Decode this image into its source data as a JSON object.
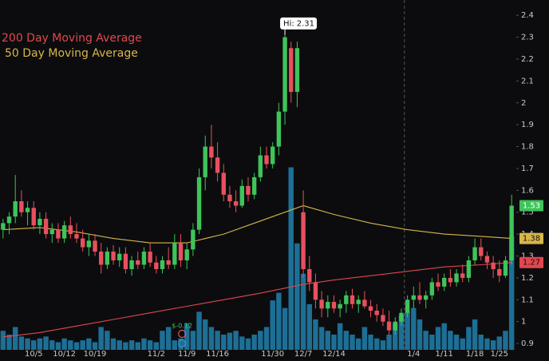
{
  "chart_data": {
    "type": "candlestick",
    "categories": [
      null,
      null,
      null,
      null,
      null,
      "10/5",
      null,
      null,
      null,
      null,
      "10/12",
      null,
      null,
      null,
      null,
      "10/19",
      null,
      null,
      null,
      null,
      null,
      null,
      null,
      null,
      null,
      "11/2",
      null,
      null,
      null,
      null,
      "11/9",
      null,
      null,
      null,
      null,
      "11/16",
      null,
      null,
      null,
      null,
      null,
      null,
      null,
      null,
      "11/30",
      null,
      null,
      null,
      null,
      "12/7",
      null,
      null,
      null,
      null,
      "12/14",
      null,
      null,
      null,
      null,
      null,
      null,
      null,
      null,
      null,
      null,
      null,
      null,
      "1/4",
      null,
      null,
      null,
      null,
      "1/11",
      null,
      null,
      null,
      null,
      "1/18",
      null,
      null,
      null,
      "1/25",
      null,
      null
    ],
    "open": [
      1.42,
      1.45,
      1.48,
      1.55,
      1.5,
      1.52,
      1.44,
      1.47,
      1.4,
      1.42,
      1.38,
      1.44,
      1.4,
      1.38,
      1.34,
      1.37,
      1.32,
      1.26,
      1.32,
      1.28,
      1.31,
      1.24,
      1.28,
      1.26,
      1.32,
      1.27,
      1.24,
      1.28,
      1.26,
      1.36,
      1.28,
      1.33,
      1.42,
      1.66,
      1.8,
      1.75,
      1.68,
      1.58,
      1.55,
      1.53,
      1.62,
      1.58,
      1.66,
      1.76,
      1.72,
      1.8,
      1.96,
      2.25,
      2.05,
      1.5,
      1.24,
      1.18,
      1.1,
      1.06,
      1.09,
      1.06,
      1.08,
      1.12,
      1.08,
      1.1,
      1.07,
      1.05,
      1.03,
      1.0,
      0.96,
      1.0,
      1.04,
      1.1,
      1.12,
      1.1,
      1.12,
      1.18,
      1.16,
      1.2,
      1.18,
      1.22,
      1.2,
      1.28,
      1.34,
      1.3,
      1.27,
      1.24,
      1.21,
      1.28
    ],
    "high": [
      1.47,
      1.5,
      1.67,
      1.6,
      1.55,
      1.55,
      1.5,
      1.5,
      1.45,
      1.45,
      1.46,
      1.48,
      1.45,
      1.42,
      1.4,
      1.4,
      1.36,
      1.34,
      1.35,
      1.34,
      1.34,
      1.3,
      1.32,
      1.34,
      1.36,
      1.3,
      1.3,
      1.34,
      1.4,
      1.4,
      1.36,
      1.45,
      1.7,
      1.85,
      1.9,
      1.82,
      1.72,
      1.62,
      1.6,
      1.65,
      1.66,
      1.68,
      1.8,
      1.8,
      1.82,
      2.0,
      2.31,
      2.28,
      2.28,
      1.6,
      1.3,
      1.22,
      1.14,
      1.12,
      1.12,
      1.1,
      1.14,
      1.15,
      1.12,
      1.14,
      1.1,
      1.08,
      1.06,
      1.05,
      1.02,
      1.06,
      1.12,
      1.16,
      1.18,
      1.14,
      1.2,
      1.22,
      1.22,
      1.24,
      1.24,
      1.26,
      1.3,
      1.38,
      1.38,
      1.32,
      1.3,
      1.28,
      1.3,
      1.58
    ],
    "low": [
      1.38,
      1.4,
      1.45,
      1.48,
      1.44,
      1.42,
      1.4,
      1.38,
      1.36,
      1.36,
      1.36,
      1.38,
      1.36,
      1.32,
      1.3,
      1.3,
      1.22,
      1.24,
      1.26,
      1.25,
      1.22,
      1.21,
      1.24,
      1.24,
      1.25,
      1.22,
      1.22,
      1.24,
      1.24,
      1.25,
      1.24,
      1.3,
      1.4,
      1.6,
      1.7,
      1.64,
      1.55,
      1.52,
      1.5,
      1.52,
      1.55,
      1.56,
      1.64,
      1.7,
      1.7,
      1.76,
      1.9,
      2.0,
      1.98,
      1.2,
      1.14,
      1.06,
      1.02,
      1.02,
      1.04,
      1.02,
      1.04,
      1.06,
      1.04,
      1.06,
      1.02,
      1.0,
      0.98,
      0.94,
      0.94,
      0.98,
      1.02,
      1.06,
      1.08,
      1.06,
      1.1,
      1.14,
      1.14,
      1.16,
      1.16,
      1.18,
      1.18,
      1.26,
      1.28,
      1.24,
      1.2,
      1.18,
      1.2,
      1.26
    ],
    "close": [
      1.45,
      1.48,
      1.55,
      1.5,
      1.52,
      1.44,
      1.47,
      1.4,
      1.42,
      1.38,
      1.44,
      1.4,
      1.38,
      1.34,
      1.37,
      1.32,
      1.26,
      1.32,
      1.28,
      1.31,
      1.24,
      1.28,
      1.26,
      1.32,
      1.27,
      1.24,
      1.28,
      1.26,
      1.36,
      1.28,
      1.33,
      1.42,
      1.66,
      1.8,
      1.75,
      1.68,
      1.58,
      1.55,
      1.53,
      1.62,
      1.58,
      1.66,
      1.76,
      1.72,
      1.8,
      1.96,
      2.3,
      2.05,
      2.25,
      1.24,
      1.18,
      1.1,
      1.06,
      1.09,
      1.06,
      1.08,
      1.12,
      1.08,
      1.1,
      1.07,
      1.05,
      1.03,
      1.0,
      0.96,
      1.0,
      1.04,
      1.1,
      1.12,
      1.1,
      1.12,
      1.18,
      1.16,
      1.2,
      1.18,
      1.22,
      1.2,
      1.28,
      1.34,
      1.3,
      1.27,
      1.24,
      1.21,
      1.28,
      1.53
    ],
    "up_color": "#3ec45a",
    "down_color": "#e8505e",
    "volume": {
      "color": "#1d6f96",
      "values": [
        10,
        8,
        12,
        7,
        6,
        5,
        6,
        7,
        5,
        4,
        6,
        5,
        4,
        5,
        6,
        4,
        12,
        10,
        6,
        5,
        4,
        5,
        4,
        6,
        5,
        4,
        10,
        12,
        5,
        6,
        14,
        10,
        20,
        16,
        12,
        10,
        8,
        9,
        10,
        7,
        6,
        8,
        10,
        12,
        26,
        30,
        22,
        96,
        56,
        40,
        24,
        16,
        12,
        10,
        8,
        14,
        10,
        8,
        6,
        12,
        8,
        6,
        5,
        8,
        14,
        18,
        20,
        22,
        16,
        10,
        8,
        12,
        14,
        10,
        8,
        6,
        12,
        16,
        8,
        6,
        5,
        7,
        10,
        60
      ]
    },
    "vlim": [
      0,
      100
    ],
    "moving_averages": [
      {
        "name": "200 Day Moving Average",
        "color": "#e0474f",
        "x": [
          0,
          6,
          12,
          18,
          24,
          30,
          36,
          42,
          49,
          54,
          60,
          66,
          72,
          78,
          83
        ],
        "values": [
          0.93,
          0.95,
          0.98,
          1.01,
          1.04,
          1.07,
          1.1,
          1.13,
          1.17,
          1.19,
          1.21,
          1.23,
          1.25,
          1.26,
          1.27
        ]
      },
      {
        "name": "50 Day Moving Average",
        "color": "#d8b64a",
        "x": [
          0,
          6,
          12,
          18,
          24,
          30,
          36,
          42,
          49,
          54,
          60,
          66,
          72,
          78,
          83
        ],
        "values": [
          1.42,
          1.43,
          1.41,
          1.38,
          1.36,
          1.36,
          1.4,
          1.46,
          1.53,
          1.49,
          1.45,
          1.42,
          1.4,
          1.39,
          1.38
        ]
      }
    ],
    "high_label": "Hi:",
    "high_index": 46,
    "earnings_label": "$-0.12",
    "ylim": [
      0.82,
      2.47
    ],
    "yticks": [
      0.9,
      1,
      1.1,
      1.2,
      1.3,
      1.4,
      1.5,
      1.6,
      1.7,
      1.8,
      1.9,
      2,
      2.1,
      2.2,
      2.3,
      2.4
    ]
  }
}
